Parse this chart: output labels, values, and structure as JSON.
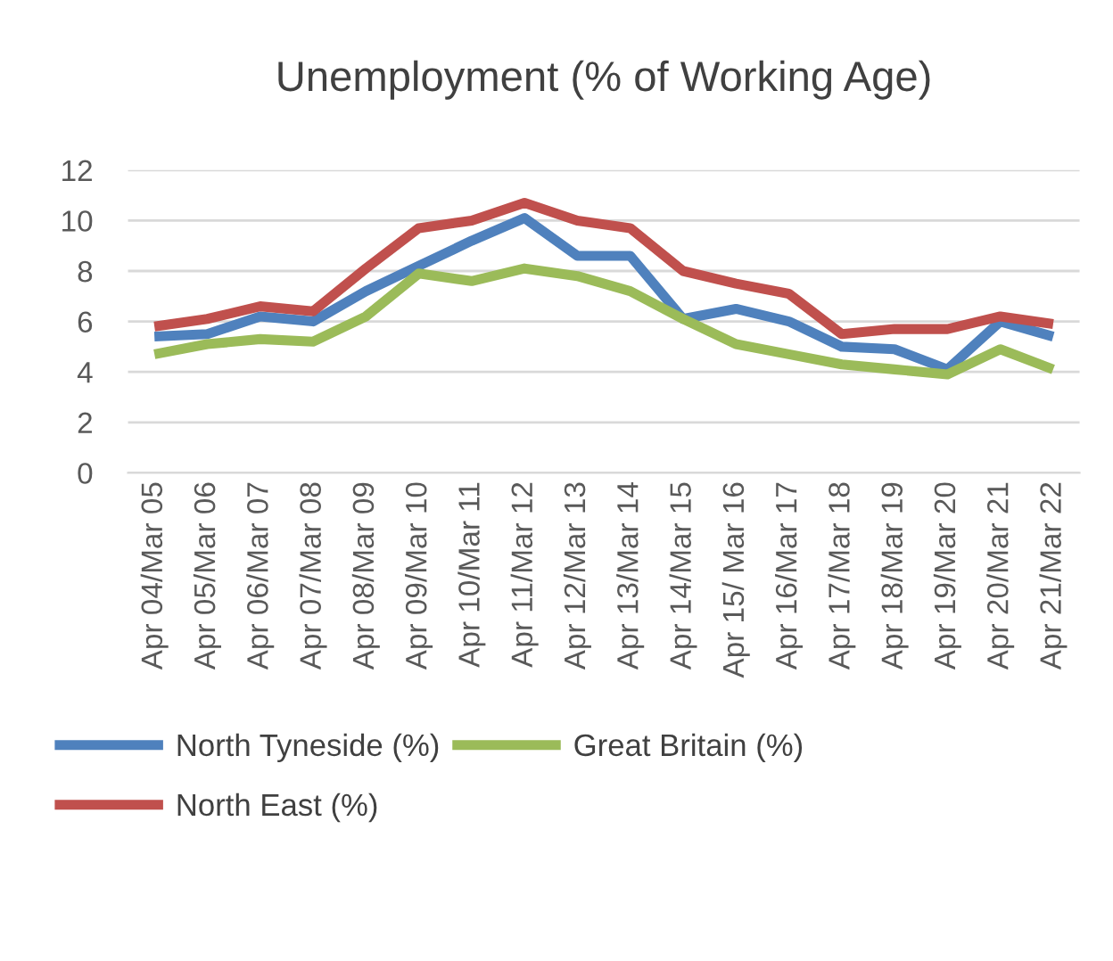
{
  "chart_data": {
    "type": "line",
    "title": "Unemployment (% of Working Age)",
    "categories": [
      "Apr 04/Mar 05",
      "Apr 05/Mar 06",
      "Apr 06/Mar 07",
      "Apr 07/Mar 08",
      "Apr 08/Mar 09",
      "Apr 09/Mar 10",
      "Apr 10/Mar 11",
      "Apr 11/Mar 12",
      "Apr 12/Mar 13",
      "Apr 13/Mar 14",
      "Apr 14/Mar 15",
      "Apr 15/ Mar 16",
      "Apr 16/Mar 17",
      "Apr 17/Mar 18",
      "Apr 18/Mar 19",
      "Apr 19/Mar 20",
      "Apr 20/Mar 21",
      "Apr 21/Mar 22"
    ],
    "series": [
      {
        "name": "North Tyneside (%)",
        "color": "#4f81bd",
        "values": [
          5.4,
          5.5,
          6.2,
          6.0,
          7.2,
          8.2,
          9.2,
          10.1,
          8.6,
          8.6,
          6.1,
          6.5,
          6.0,
          5.0,
          4.9,
          4.1,
          6.0,
          5.4
        ]
      },
      {
        "name": "North East (%)",
        "color": "#c0504d",
        "values": [
          5.8,
          6.1,
          6.6,
          6.4,
          8.1,
          9.7,
          10.0,
          10.7,
          10.0,
          9.7,
          8.0,
          7.5,
          7.1,
          5.5,
          5.7,
          5.7,
          6.2,
          5.9
        ]
      },
      {
        "name": "Great Britain (%)",
        "color": "#9bbb59",
        "values": [
          4.7,
          5.1,
          5.3,
          5.2,
          6.2,
          7.9,
          7.6,
          8.1,
          7.8,
          7.2,
          6.1,
          5.1,
          4.7,
          4.3,
          4.1,
          3.9,
          4.9,
          4.1
        ]
      }
    ],
    "ylim": [
      0,
      12
    ],
    "yticks": [
      0,
      2,
      4,
      6,
      8,
      10,
      12
    ],
    "grid": "y",
    "legend": "bottom",
    "marker": "none",
    "line_style": "solid"
  }
}
